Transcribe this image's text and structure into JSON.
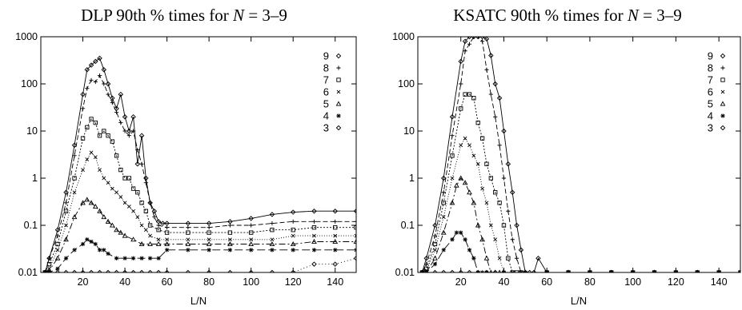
{
  "chart_data": [
    {
      "type": "line",
      "title_prefix": "DLP 90th % times for ",
      "title_var": "N",
      "title_suffix": " = 3–9",
      "xlabel": "L/N",
      "ylabel": "",
      "xlim": [
        0,
        150
      ],
      "ylim": [
        0.01,
        1000
      ],
      "yscale": "log",
      "xticks": [
        "20",
        "40",
        "60",
        "80",
        "100",
        "120",
        "140"
      ],
      "yticks": [
        "0.01",
        "0.1",
        "1",
        "10",
        "100",
        "1000"
      ],
      "legend_position": "top-right",
      "series": [
        {
          "name": "9",
          "marker": "diamond",
          "dash": "none",
          "x": [
            2,
            4,
            8,
            12,
            16,
            20,
            22,
            24,
            26,
            28,
            30,
            32,
            34,
            36,
            38,
            40,
            42,
            44,
            46,
            48,
            50,
            52,
            54,
            56,
            58,
            60,
            70,
            80,
            90,
            100,
            110,
            120,
            130,
            140,
            150
          ],
          "y": [
            0.01,
            0.02,
            0.08,
            0.5,
            5,
            60,
            200,
            250,
            300,
            350,
            200,
            100,
            50,
            30,
            60,
            20,
            10,
            20,
            2,
            8,
            1,
            0.3,
            0.2,
            0.12,
            0.11,
            0.11,
            0.11,
            0.11,
            0.12,
            0.14,
            0.17,
            0.19,
            0.2,
            0.2,
            0.2
          ]
        },
        {
          "name": "8",
          "marker": "plus",
          "dash": "6,3",
          "x": [
            2,
            4,
            8,
            12,
            16,
            20,
            22,
            24,
            26,
            28,
            30,
            32,
            34,
            36,
            38,
            40,
            42,
            44,
            46,
            48,
            50,
            52,
            54,
            56,
            60,
            70,
            80,
            90,
            100,
            110,
            120,
            130,
            140,
            150
          ],
          "y": [
            0.01,
            0.02,
            0.06,
            0.3,
            3,
            30,
            80,
            120,
            110,
            150,
            100,
            60,
            40,
            25,
            15,
            10,
            8,
            10,
            4,
            2,
            0.8,
            0.3,
            0.15,
            0.1,
            0.09,
            0.09,
            0.09,
            0.1,
            0.1,
            0.11,
            0.12,
            0.12,
            0.12,
            0.12
          ]
        },
        {
          "name": "7",
          "marker": "square",
          "dash": "2,2",
          "x": [
            2,
            4,
            8,
            12,
            16,
            20,
            22,
            24,
            26,
            28,
            30,
            32,
            34,
            36,
            38,
            40,
            42,
            44,
            46,
            48,
            50,
            52,
            56,
            60,
            70,
            80,
            90,
            100,
            110,
            120,
            130,
            140,
            150
          ],
          "y": [
            0.01,
            0.015,
            0.04,
            0.2,
            1,
            7,
            12,
            18,
            15,
            8,
            10,
            8,
            6,
            3,
            1.5,
            1,
            1,
            0.6,
            0.5,
            0.3,
            0.2,
            0.1,
            0.08,
            0.07,
            0.07,
            0.07,
            0.07,
            0.07,
            0.08,
            0.08,
            0.09,
            0.09,
            0.09
          ]
        },
        {
          "name": "6",
          "marker": "cross",
          "dash": "1,2",
          "x": [
            2,
            4,
            8,
            12,
            16,
            20,
            22,
            24,
            26,
            28,
            30,
            32,
            34,
            36,
            38,
            40,
            42,
            44,
            46,
            48,
            50,
            52,
            56,
            60,
            70,
            80,
            90,
            100,
            110,
            120,
            130,
            140,
            150
          ],
          "y": [
            0.01,
            0.012,
            0.03,
            0.1,
            0.5,
            1.5,
            2.5,
            3.5,
            2.8,
            1.5,
            1,
            0.8,
            0.6,
            0.5,
            0.4,
            0.3,
            0.25,
            0.2,
            0.15,
            0.1,
            0.08,
            0.06,
            0.05,
            0.05,
            0.05,
            0.05,
            0.05,
            0.05,
            0.05,
            0.06,
            0.06,
            0.06,
            0.06
          ]
        },
        {
          "name": "5",
          "marker": "triangle",
          "dash": "8,3,2,3",
          "x": [
            2,
            4,
            8,
            12,
            16,
            20,
            22,
            24,
            26,
            28,
            30,
            32,
            34,
            36,
            38,
            40,
            44,
            48,
            52,
            56,
            60,
            70,
            80,
            90,
            100,
            110,
            120,
            130,
            140,
            150
          ],
          "y": [
            0.01,
            0.011,
            0.02,
            0.05,
            0.15,
            0.3,
            0.35,
            0.3,
            0.25,
            0.2,
            0.15,
            0.12,
            0.1,
            0.08,
            0.07,
            0.06,
            0.05,
            0.04,
            0.04,
            0.04,
            0.04,
            0.04,
            0.04,
            0.04,
            0.04,
            0.04,
            0.04,
            0.045,
            0.045,
            0.045
          ]
        },
        {
          "name": "4",
          "marker": "star",
          "dash": "10,4",
          "x": [
            2,
            4,
            8,
            12,
            16,
            20,
            22,
            24,
            26,
            28,
            30,
            32,
            36,
            40,
            44,
            48,
            52,
            56,
            60,
            70,
            80,
            90,
            100,
            110,
            120,
            130,
            140,
            150
          ],
          "y": [
            0.01,
            0.01,
            0.012,
            0.02,
            0.03,
            0.04,
            0.05,
            0.045,
            0.04,
            0.03,
            0.03,
            0.025,
            0.02,
            0.02,
            0.02,
            0.02,
            0.02,
            0.02,
            0.03,
            0.03,
            0.03,
            0.03,
            0.03,
            0.03,
            0.03,
            0.03,
            0.03,
            0.03
          ]
        },
        {
          "name": "3",
          "marker": "diamond",
          "dash": "1,3",
          "x": [
            2,
            4,
            8,
            12,
            16,
            20,
            24,
            28,
            32,
            36,
            40,
            44,
            48,
            52,
            56,
            60,
            70,
            80,
            90,
            100,
            110,
            120,
            130,
            140,
            150
          ],
          "y": [
            0.01,
            0.01,
            0.01,
            0.01,
            0.01,
            0.01,
            0.01,
            0.01,
            0.01,
            0.01,
            0.01,
            0.01,
            0.01,
            0.01,
            0.01,
            0.01,
            0.01,
            0.01,
            0.01,
            0.01,
            0.01,
            0.01,
            0.015,
            0.015,
            0.02
          ]
        }
      ]
    },
    {
      "type": "line",
      "title_prefix": "KSATC 90th % times for ",
      "title_var": "N",
      "title_suffix": " = 3–9",
      "xlabel": "L/N",
      "ylabel": "",
      "xlim": [
        0,
        150
      ],
      "ylim": [
        0.01,
        1000
      ],
      "yscale": "log",
      "xticks": [
        "20",
        "40",
        "60",
        "80",
        "100",
        "120",
        "140"
      ],
      "yticks": [
        "0.01",
        "0.1",
        "1",
        "10",
        "100",
        "1000"
      ],
      "legend_position": "top-right",
      "series": [
        {
          "name": "9",
          "marker": "diamond",
          "dash": "none",
          "x": [
            2,
            4,
            8,
            12,
            16,
            20,
            22,
            24,
            26,
            28,
            30,
            32,
            34,
            36,
            38,
            40,
            42,
            44,
            46,
            48,
            50,
            52,
            54,
            56,
            60,
            70,
            80,
            90,
            100,
            110,
            120,
            130,
            140,
            150
          ],
          "y": [
            0.01,
            0.02,
            0.1,
            1,
            20,
            300,
            800,
            1000,
            1000,
            1000,
            1000,
            900,
            400,
            100,
            50,
            10,
            2,
            0.5,
            0.1,
            0.03,
            0.01,
            0.01,
            0.01,
            0.02,
            0.01,
            0.01,
            0.01,
            0.01,
            0.01,
            0.01,
            0.01,
            0.01,
            0.01,
            0.01
          ]
        },
        {
          "name": "8",
          "marker": "plus",
          "dash": "6,3",
          "x": [
            2,
            4,
            8,
            12,
            16,
            20,
            22,
            24,
            26,
            28,
            30,
            32,
            34,
            36,
            38,
            40,
            42,
            44,
            46,
            48,
            50,
            60,
            70,
            80,
            90,
            100,
            110,
            120,
            130,
            140,
            150
          ],
          "y": [
            0.01,
            0.015,
            0.06,
            0.5,
            8,
            100,
            500,
            700,
            1000,
            1000,
            800,
            200,
            60,
            20,
            5,
            1,
            0.2,
            0.05,
            0.02,
            0.01,
            0.01,
            0.01,
            0.01,
            0.01,
            0.01,
            0.01,
            0.01,
            0.01,
            0.01,
            0.01,
            0.01
          ]
        },
        {
          "name": "7",
          "marker": "square",
          "dash": "2,2",
          "x": [
            2,
            4,
            8,
            12,
            16,
            20,
            22,
            24,
            26,
            28,
            30,
            32,
            34,
            36,
            38,
            40,
            42,
            44,
            46,
            48,
            60,
            70,
            80,
            90,
            100,
            110,
            120,
            130,
            140,
            150
          ],
          "y": [
            0.01,
            0.012,
            0.04,
            0.3,
            3,
            30,
            60,
            60,
            50,
            15,
            7,
            2,
            1,
            0.5,
            0.3,
            0.1,
            0.02,
            0.01,
            0.01,
            0.01,
            0.01,
            0.01,
            0.01,
            0.01,
            0.01,
            0.01,
            0.01,
            0.01,
            0.01,
            0.01
          ]
        },
        {
          "name": "6",
          "marker": "cross",
          "dash": "1,2",
          "x": [
            2,
            4,
            8,
            12,
            16,
            20,
            22,
            24,
            26,
            28,
            30,
            32,
            34,
            36,
            38,
            40,
            44,
            48,
            60,
            70,
            80,
            90,
            100,
            110,
            120,
            130,
            140,
            150
          ],
          "y": [
            0.01,
            0.011,
            0.03,
            0.15,
            1,
            5,
            7,
            5,
            3,
            2,
            0.6,
            0.3,
            0.1,
            0.05,
            0.02,
            0.01,
            0.01,
            0.01,
            0.01,
            0.01,
            0.01,
            0.01,
            0.01,
            0.01,
            0.01,
            0.01,
            0.01,
            0.01
          ]
        },
        {
          "name": "5",
          "marker": "triangle",
          "dash": "8,3,2,3",
          "x": [
            2,
            4,
            8,
            12,
            16,
            18,
            20,
            22,
            24,
            26,
            28,
            30,
            32,
            34,
            36,
            38,
            40,
            50,
            60,
            70,
            80,
            90,
            100,
            110,
            120,
            130,
            140,
            150
          ],
          "y": [
            0.01,
            0.01,
            0.02,
            0.07,
            0.3,
            0.7,
            1,
            0.8,
            0.5,
            0.3,
            0.1,
            0.05,
            0.02,
            0.01,
            0.01,
            0.01,
            0.01,
            0.01,
            0.01,
            0.01,
            0.01,
            0.01,
            0.01,
            0.01,
            0.01,
            0.01,
            0.01,
            0.01
          ]
        },
        {
          "name": "4",
          "marker": "star",
          "dash": "10,4",
          "x": [
            2,
            4,
            8,
            12,
            16,
            18,
            20,
            22,
            24,
            26,
            28,
            30,
            32,
            40,
            50,
            60,
            70,
            80,
            90,
            100,
            110,
            120,
            130,
            140,
            150
          ],
          "y": [
            0.01,
            0.01,
            0.015,
            0.03,
            0.05,
            0.07,
            0.07,
            0.05,
            0.03,
            0.02,
            0.01,
            0.01,
            0.01,
            0.01,
            0.01,
            0.01,
            0.01,
            0.01,
            0.01,
            0.01,
            0.01,
            0.01,
            0.01,
            0.01,
            0.01
          ]
        },
        {
          "name": "3",
          "marker": "diamond",
          "dash": "1,3",
          "x": [
            2,
            4,
            8,
            12,
            16,
            20,
            24,
            28,
            32,
            36,
            40,
            50,
            60,
            70,
            80,
            90,
            100,
            110,
            120,
            130,
            140,
            150
          ],
          "y": [
            0.01,
            0.01,
            0.01,
            0.01,
            0.01,
            0.01,
            0.01,
            0.01,
            0.01,
            0.01,
            0.01,
            0.01,
            0.01,
            0.01,
            0.01,
            0.01,
            0.01,
            0.01,
            0.01,
            0.01,
            0.01,
            0.01
          ]
        }
      ]
    }
  ]
}
